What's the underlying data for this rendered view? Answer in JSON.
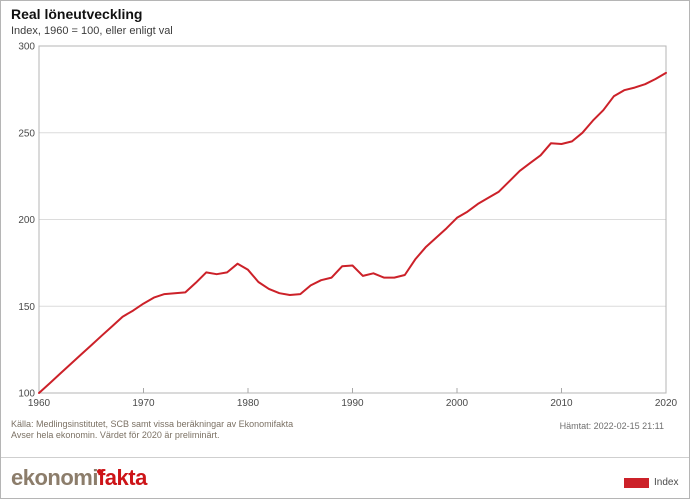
{
  "header": {
    "title": "Real löneutveckling",
    "subtitle": "Index, 1960 = 100, eller enligt val"
  },
  "chart_data": {
    "type": "line",
    "title": "Real löneutveckling",
    "subtitle": "Index, 1960 = 100, eller enligt val",
    "series": [
      {
        "name": "Index",
        "x": [
          1960,
          1961,
          1962,
          1963,
          1964,
          1965,
          1966,
          1967,
          1968,
          1969,
          1970,
          1971,
          1972,
          1973,
          1974,
          1975,
          1976,
          1977,
          1978,
          1979,
          1980,
          1981,
          1982,
          1983,
          1984,
          1985,
          1986,
          1987,
          1988,
          1989,
          1990,
          1991,
          1992,
          1993,
          1994,
          1995,
          1996,
          1997,
          1998,
          1999,
          2000,
          2001,
          2002,
          2003,
          2004,
          2005,
          2006,
          2007,
          2008,
          2009,
          2010,
          2011,
          2012,
          2013,
          2014,
          2015,
          2016,
          2017,
          2018,
          2019,
          2020
        ],
        "values": [
          100,
          105.5,
          111,
          116.5,
          122,
          127.5,
          133,
          138.5,
          144,
          147.5,
          151.5,
          155,
          157,
          157.5,
          158,
          163.5,
          169.5,
          168.5,
          169.5,
          174.5,
          171,
          164,
          160,
          157.5,
          156.5,
          157,
          162,
          165,
          166.5,
          173,
          173.5,
          167.5,
          169,
          166.5,
          166.5,
          168,
          177,
          184,
          189.5,
          195,
          201,
          204.5,
          209,
          212.5,
          216,
          222,
          228,
          232.5,
          237,
          244,
          243.5,
          245,
          250,
          257,
          263,
          271,
          274.5,
          276,
          278,
          281,
          284.5
        ]
      }
    ],
    "xlabel": "",
    "ylabel": "",
    "x_range": [
      1960,
      2020
    ],
    "ylim": [
      100,
      300
    ],
    "y_ticks": [
      100,
      150,
      200,
      250,
      300
    ],
    "x_ticks": [
      1960,
      1970,
      1980,
      1990,
      2000,
      2010,
      2020
    ],
    "grid": true,
    "legend_position": "bottom-right",
    "line_color": "#cc2129",
    "grid_color": "#dcdcdc",
    "axis_color": "#b5b5b5",
    "tick_label_color": "#4a4a4a"
  },
  "footer": {
    "source_line1": "Källa: Medlingsinstitutet, SCB samt vissa beräkningar av Ekonomifakta",
    "source_line2": "Avser hela ekonomin. Värdet för 2020 är preliminärt.",
    "fetched": "Hämtat: 2022-02-15 21:11"
  },
  "branding": {
    "logo_gray": "ekonomi",
    "logo_red": "fakta",
    "logo_dot_color": "#cd1418"
  },
  "legend": {
    "label": "Index",
    "swatch_color": "#cc2129"
  }
}
